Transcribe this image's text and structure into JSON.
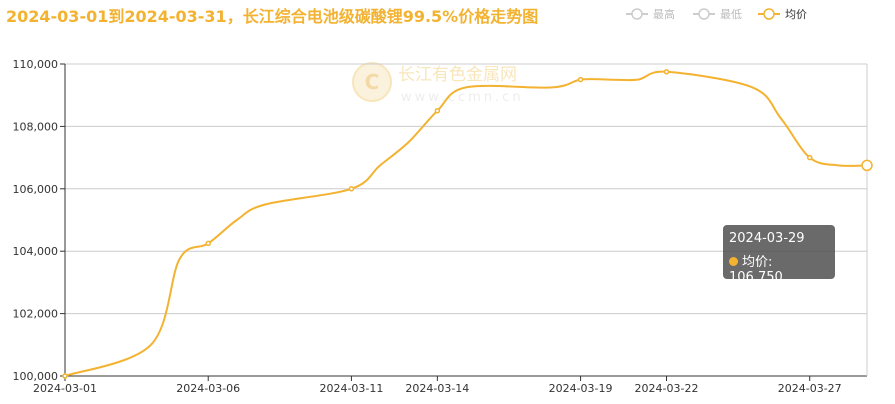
{
  "chart_data": {
    "type": "line",
    "title": "2024-03-01到2024-03-31，长江综合电池级碳酸锂99.5%价格走势图",
    "legend": {
      "position": "top-right",
      "items": [
        {
          "label": "最高",
          "color": "#cccccc",
          "active": false
        },
        {
          "label": "最低",
          "color": "#cccccc",
          "active": false
        },
        {
          "label": "均价",
          "color": "#f3b230",
          "active": true
        }
      ]
    },
    "watermark": {
      "name": "长江有色金属网",
      "url": "www.ccmn.cn"
    },
    "xlabel": "",
    "ylabel": "",
    "ylim": [
      100000,
      110000
    ],
    "y_ticks": [
      "100,000",
      "102,000",
      "104,000",
      "106,000",
      "108,000",
      "110,000"
    ],
    "x_tick_labels": [
      "2024-03-01",
      "2024-03-06",
      "2024-03-11",
      "2024-03-14",
      "2024-03-19",
      "2024-03-22",
      "2024-03-27"
    ],
    "grid": true,
    "series": [
      {
        "name": "均价",
        "color": "#f3b230",
        "points": [
          {
            "x": "2024-03-01",
            "y": 100000
          },
          {
            "x": "2024-03-04",
            "y": 101000
          },
          {
            "x": "2024-03-05",
            "y": 103750
          },
          {
            "x": "2024-03-06",
            "y": 104250
          },
          {
            "x": "2024-03-07",
            "y": 105000
          },
          {
            "x": "2024-03-08",
            "y": 105500
          },
          {
            "x": "2024-03-11",
            "y": 106000
          },
          {
            "x": "2024-03-12",
            "y": 106750
          },
          {
            "x": "2024-03-13",
            "y": 107500
          },
          {
            "x": "2024-03-14",
            "y": 108500
          },
          {
            "x": "2024-03-15",
            "y": 109250
          },
          {
            "x": "2024-03-18",
            "y": 109250
          },
          {
            "x": "2024-03-19",
            "y": 109500
          },
          {
            "x": "2024-03-20",
            "y": 109500
          },
          {
            "x": "2024-03-21",
            "y": 109500
          },
          {
            "x": "2024-03-22",
            "y": 109750
          },
          {
            "x": "2024-03-25",
            "y": 109250
          },
          {
            "x": "2024-03-26",
            "y": 108250
          },
          {
            "x": "2024-03-27",
            "y": 107000
          },
          {
            "x": "2024-03-28",
            "y": 106750
          },
          {
            "x": "2024-03-29",
            "y": 106750
          }
        ]
      }
    ],
    "tooltip": {
      "date": "2024-03-29",
      "series": "均价",
      "value_text": "106,750"
    }
  }
}
